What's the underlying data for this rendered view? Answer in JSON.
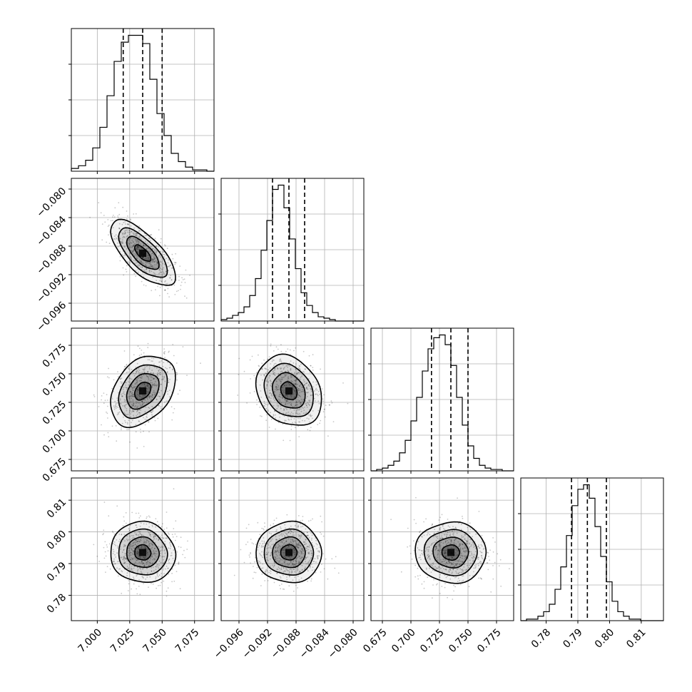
{
  "chart_data": {
    "type": "corner",
    "title": "",
    "colors": {
      "line": "#000000",
      "grid": "#b0b0b0",
      "density": "#000000"
    },
    "grid": true,
    "parameters": [
      {
        "xlim": [
          6.98,
          7.09
        ],
        "xticks": [
          {
            "value": 7.0,
            "label": "7.000"
          },
          {
            "value": 7.025,
            "label": "7.025"
          },
          {
            "value": 7.05,
            "label": "7.050"
          },
          {
            "value": 7.075,
            "label": "7.075"
          }
        ],
        "yticks_as_row": [],
        "quantiles": [
          7.02,
          7.035,
          7.05
        ],
        "hist": {
          "edges_start": 6.98,
          "bin_width": 0.0055,
          "counts": [
            2,
            4,
            8,
            17,
            32,
            55,
            80,
            94,
            99,
            99,
            93,
            67,
            42,
            26,
            13,
            7,
            3,
            1,
            1,
            0
          ]
        },
        "mean": 7.035,
        "sd": 0.0125
      },
      {
        "xlim": [
          -0.0985,
          -0.0785
        ],
        "xticks": [
          {
            "value": -0.096,
            "label": "−0.096"
          },
          {
            "value": -0.092,
            "label": "−0.092"
          },
          {
            "value": -0.088,
            "label": "−0.088"
          },
          {
            "value": -0.084,
            "label": "−0.084"
          },
          {
            "value": -0.08,
            "label": "−0.080"
          }
        ],
        "yticks_as_row": [
          {
            "value": -0.08,
            "label": "−0.080"
          },
          {
            "value": -0.084,
            "label": "−0.084"
          },
          {
            "value": -0.088,
            "label": "−0.088"
          },
          {
            "value": -0.092,
            "label": "−0.092"
          },
          {
            "value": -0.096,
            "label": "−0.096"
          }
        ],
        "ylim_as_row": [
          -0.0985,
          -0.0785
        ],
        "quantiles": [
          -0.0913,
          -0.089,
          -0.0868
        ],
        "hist": {
          "edges_start": -0.0985,
          "bin_width": 0.0008,
          "counts": [
            1,
            2,
            4,
            6,
            10,
            18,
            30,
            50,
            71,
            93,
            96,
            80,
            58,
            37,
            20,
            11,
            6,
            3,
            2,
            1,
            0,
            0,
            0,
            0,
            0
          ]
        },
        "mean": -0.089,
        "sd": 0.0023
      },
      {
        "xlim": [
          0.665,
          0.79
        ],
        "xticks": [
          {
            "value": 0.675,
            "label": "0.675"
          },
          {
            "value": 0.7,
            "label": "0.700"
          },
          {
            "value": 0.725,
            "label": "0.725"
          },
          {
            "value": 0.75,
            "label": "0.750"
          },
          {
            "value": 0.775,
            "label": "0.775"
          }
        ],
        "yticks_as_row": [
          {
            "value": 0.775,
            "label": "0.775"
          },
          {
            "value": 0.75,
            "label": "0.750"
          },
          {
            "value": 0.725,
            "label": "0.725"
          },
          {
            "value": 0.7,
            "label": "0.700"
          },
          {
            "value": 0.675,
            "label": "0.675"
          }
        ],
        "ylim_as_row": [
          0.665,
          0.79
        ],
        "quantiles": [
          0.718,
          0.735,
          0.75
        ],
        "hist": {
          "edges_start": 0.665,
          "bin_width": 0.005,
          "counts": [
            0,
            1,
            2,
            4,
            7,
            13,
            22,
            36,
            53,
            72,
            88,
            96,
            98,
            91,
            76,
            53,
            33,
            18,
            9,
            4,
            2,
            1,
            1,
            0,
            0
          ]
        },
        "mean": 0.735,
        "sd": 0.0155
      },
      {
        "xlim": [
          0.772,
          0.817
        ],
        "xticks": [
          {
            "value": 0.78,
            "label": "0.78"
          },
          {
            "value": 0.79,
            "label": "0.79"
          },
          {
            "value": 0.8,
            "label": "0.80"
          },
          {
            "value": 0.81,
            "label": "0.81"
          }
        ],
        "yticks_as_row": [
          {
            "value": 0.81,
            "label": "0.81"
          },
          {
            "value": 0.8,
            "label": "0.80"
          },
          {
            "value": 0.79,
            "label": "0.79"
          },
          {
            "value": 0.78,
            "label": "0.78"
          }
        ],
        "ylim_as_row": [
          0.772,
          0.817
        ],
        "quantiles": [
          0.788,
          0.793,
          0.799
        ],
        "hist": {
          "edges_start": 0.772,
          "bin_width": 0.0018,
          "counts": [
            0,
            1,
            1,
            3,
            6,
            11,
            21,
            36,
            57,
            77,
            88,
            91,
            82,
            63,
            43,
            26,
            13,
            6,
            3,
            1,
            1,
            0,
            0,
            0,
            0
          ]
        },
        "mean": 0.7935,
        "sd": 0.0048
      }
    ],
    "correlations": [
      {
        "i": 1,
        "j": 0,
        "rho": -0.7
      },
      {
        "i": 2,
        "j": 0,
        "rho": 0.35
      },
      {
        "i": 2,
        "j": 1,
        "rho": -0.22
      },
      {
        "i": 3,
        "j": 0,
        "rho": -0.05
      },
      {
        "i": 3,
        "j": 1,
        "rho": 0.0
      },
      {
        "i": 3,
        "j": 2,
        "rho": -0.02
      }
    ],
    "contour_levels_sigma": [
      0.5,
      1.0,
      1.5,
      2.0
    ]
  }
}
